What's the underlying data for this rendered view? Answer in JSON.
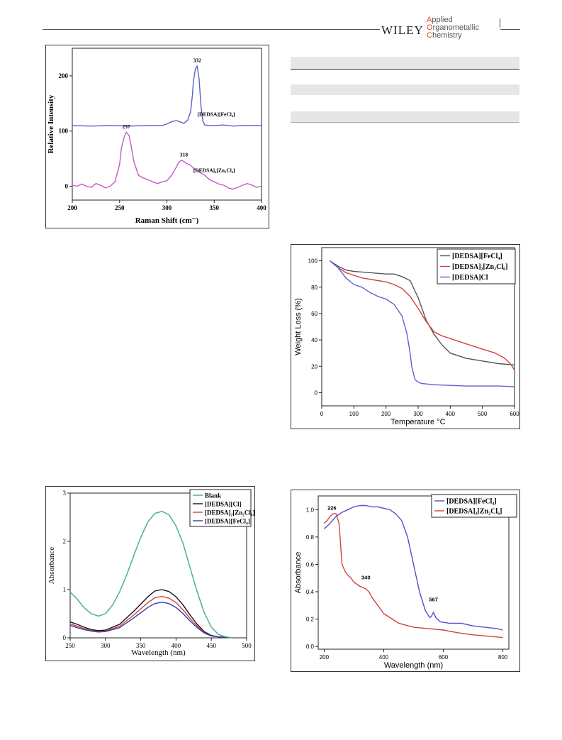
{
  "header": {
    "publisher": "WILEY",
    "journal_lines": [
      "Applied",
      "Organometallic",
      "Chemistry"
    ]
  },
  "chart_data": [
    {
      "id": "raman",
      "type": "line",
      "xlabel": "Raman Shift (cm⁻)",
      "ylabel": "Relative Intensity",
      "xlim": [
        200,
        400
      ],
      "ylim": [
        -25,
        250
      ],
      "x_ticks": [
        "200",
        "250",
        "300",
        "350",
        "400"
      ],
      "y_ticks": [
        "0",
        "100",
        "200"
      ],
      "series": [
        {
          "name": "[DEDSA][FeCl₄]",
          "color": "#5a5fc8",
          "x": [
            200,
            220,
            240,
            260,
            280,
            295,
            300,
            305,
            310,
            315,
            318,
            322,
            325,
            327,
            328,
            330,
            332,
            334,
            336,
            338,
            340,
            345,
            350,
            360,
            370,
            380,
            390,
            400
          ],
          "y": [
            110,
            109,
            110,
            109,
            110,
            110,
            113,
            117,
            119,
            116,
            114,
            120,
            135,
            165,
            190,
            212,
            218,
            195,
            145,
            118,
            111,
            110,
            110,
            111,
            109,
            110,
            110,
            110
          ]
        },
        {
          "name": "[DEDSA]₂[Zn₂Cl₆]",
          "color": "#c558c8",
          "x": [
            200,
            205,
            210,
            215,
            220,
            225,
            230,
            235,
            240,
            245,
            250,
            252,
            255,
            257,
            260,
            262,
            265,
            270,
            275,
            280,
            285,
            290,
            295,
            300,
            305,
            310,
            312,
            315,
            318,
            320,
            325,
            330,
            335,
            340,
            345,
            350,
            355,
            360,
            365,
            370,
            375,
            380,
            385,
            390,
            395,
            400
          ],
          "y": [
            2,
            0,
            4,
            0,
            -2,
            5,
            2,
            -3,
            0,
            8,
            40,
            70,
            90,
            98,
            92,
            75,
            45,
            20,
            15,
            12,
            8,
            5,
            8,
            10,
            20,
            35,
            42,
            47,
            45,
            42,
            38,
            30,
            25,
            20,
            12,
            8,
            4,
            2,
            -3,
            -5,
            -2,
            2,
            5,
            2,
            -2,
            0
          ]
        }
      ],
      "annotations": [
        {
          "text": "332",
          "x": 332,
          "y": 225
        },
        {
          "text": "257",
          "x": 257,
          "y": 105
        },
        {
          "text": "318",
          "x": 318,
          "y": 54
        },
        {
          "text": "[DEDSA][FeCl₄]",
          "x": 372,
          "y": 127
        },
        {
          "text": "[DEDSA]₂[Zn₂Cl₆]",
          "x": 372,
          "y": 26
        }
      ]
    },
    {
      "id": "tga",
      "type": "line",
      "xlabel": "Temperature °C",
      "ylabel": "Weight Loss (%)",
      "xlim": [
        0,
        600
      ],
      "ylim": [
        -10,
        110
      ],
      "x_ticks": [
        "0",
        "100",
        "200",
        "300",
        "400",
        "500",
        "600"
      ],
      "y_ticks": [
        "0",
        "20",
        "40",
        "60",
        "80",
        "100"
      ],
      "legend_position": "top-right",
      "series": [
        {
          "name": "[DEDSA][FeCl₄]",
          "color": "#555555",
          "x": [
            25,
            50,
            75,
            100,
            150,
            200,
            225,
            250,
            275,
            300,
            325,
            350,
            375,
            400,
            450,
            500,
            550,
            600
          ],
          "y": [
            100,
            96,
            93,
            92,
            91,
            90,
            90,
            88,
            85,
            72,
            55,
            44,
            36,
            30,
            26,
            24,
            22,
            21
          ]
        },
        {
          "name": "[DEDSA]₂[Zn₂Cl₆]",
          "color": "#d24040",
          "x": [
            25,
            50,
            75,
            100,
            125,
            150,
            175,
            200,
            225,
            250,
            275,
            300,
            325,
            350,
            375,
            400,
            450,
            500,
            540,
            570,
            590,
            600
          ],
          "y": [
            100,
            95,
            91,
            89,
            87,
            86,
            85,
            84,
            82,
            79,
            73,
            64,
            54,
            46,
            43,
            41,
            37,
            33,
            30,
            26,
            21,
            17
          ]
        },
        {
          "name": "[DEDSA]Cl",
          "color": "#6060d0",
          "x": [
            25,
            50,
            75,
            100,
            125,
            150,
            175,
            200,
            225,
            250,
            265,
            275,
            280,
            290,
            300,
            310,
            350,
            400,
            450,
            500,
            550,
            600
          ],
          "y": [
            100,
            95,
            87,
            82,
            80,
            76,
            73,
            71,
            67,
            58,
            45,
            30,
            20,
            10,
            8,
            7,
            6,
            5.5,
            5,
            5,
            5,
            4.5
          ]
        }
      ]
    },
    {
      "id": "uv_degradation",
      "type": "line",
      "xlabel": "Wavelength (nm)",
      "ylabel": "Absorbance",
      "xlim": [
        250,
        500
      ],
      "ylim": [
        0,
        3
      ],
      "x_ticks": [
        "250",
        "300",
        "350",
        "400",
        "450",
        "500"
      ],
      "y_ticks": [
        "0",
        "1",
        "2",
        "3"
      ],
      "legend_position": "top-right",
      "series": [
        {
          "name": "Blank",
          "color": "#3fa89a",
          "x": [
            250,
            260,
            270,
            280,
            290,
            300,
            310,
            320,
            330,
            340,
            350,
            360,
            370,
            380,
            390,
            400,
            410,
            420,
            430,
            440,
            450,
            460,
            470,
            475,
            480
          ],
          "y": [
            0.95,
            0.8,
            0.62,
            0.5,
            0.45,
            0.5,
            0.68,
            0.95,
            1.3,
            1.7,
            2.08,
            2.4,
            2.58,
            2.62,
            2.55,
            2.32,
            1.95,
            1.45,
            0.95,
            0.52,
            0.22,
            0.07,
            0.02,
            0.01,
            0
          ]
        },
        {
          "name": "[DEDSA][Cl]",
          "color": "#111111",
          "x": [
            250,
            260,
            270,
            280,
            290,
            300,
            320,
            340,
            360,
            370,
            380,
            390,
            400,
            410,
            420,
            430,
            440,
            450,
            460,
            470
          ],
          "y": [
            0.33,
            0.28,
            0.22,
            0.17,
            0.15,
            0.16,
            0.28,
            0.55,
            0.85,
            0.97,
            1.0,
            0.96,
            0.85,
            0.68,
            0.47,
            0.28,
            0.13,
            0.05,
            0.02,
            0.01
          ]
        },
        {
          "name": "[DEDSA]₂[Zn₂Cl₆]",
          "color": "#d24040",
          "x": [
            250,
            260,
            270,
            280,
            290,
            300,
            320,
            340,
            360,
            370,
            380,
            390,
            400,
            410,
            420,
            430,
            440,
            450,
            460,
            470
          ],
          "y": [
            0.29,
            0.24,
            0.19,
            0.15,
            0.13,
            0.14,
            0.24,
            0.47,
            0.73,
            0.83,
            0.86,
            0.82,
            0.73,
            0.58,
            0.4,
            0.24,
            0.11,
            0.04,
            0.02,
            0.01
          ]
        },
        {
          "name": "[DEDSA][FeCl₄]",
          "color": "#3a3aa8",
          "x": [
            250,
            260,
            270,
            280,
            290,
            300,
            320,
            340,
            360,
            370,
            380,
            390,
            400,
            410,
            420,
            430,
            440,
            450,
            460,
            470
          ],
          "y": [
            0.26,
            0.21,
            0.17,
            0.14,
            0.12,
            0.13,
            0.21,
            0.41,
            0.63,
            0.71,
            0.74,
            0.71,
            0.63,
            0.5,
            0.35,
            0.21,
            0.1,
            0.04,
            0.02,
            0.01
          ]
        }
      ]
    },
    {
      "id": "drs",
      "type": "line",
      "xlabel": "Wavelength (nm)",
      "ylabel": "Absorbance",
      "xlim": [
        180,
        820
      ],
      "ylim": [
        -0.02,
        1.1
      ],
      "x_ticks": [
        "200",
        "400",
        "600",
        "800"
      ],
      "y_ticks": [
        "0.0",
        "0.2",
        "0.4",
        "0.6",
        "0.8",
        "1.0"
      ],
      "legend_position": "top-right",
      "series": [
        {
          "name": "[DEDSA][FeCl₄]",
          "color": "#5050d0",
          "x": [
            200,
            220,
            240,
            260,
            280,
            300,
            320,
            340,
            360,
            380,
            400,
            420,
            440,
            460,
            480,
            500,
            520,
            540,
            555,
            560,
            567,
            575,
            590,
            620,
            660,
            700,
            740,
            780,
            800
          ],
          "y": [
            0.86,
            0.9,
            0.95,
            0.98,
            1.0,
            1.02,
            1.03,
            1.03,
            1.02,
            1.02,
            1.01,
            1.0,
            0.97,
            0.92,
            0.8,
            0.6,
            0.4,
            0.26,
            0.21,
            0.22,
            0.25,
            0.21,
            0.18,
            0.17,
            0.17,
            0.15,
            0.14,
            0.13,
            0.12
          ]
        },
        {
          "name": "[DEDSA]₂[Zn₂Cl₆]",
          "color": "#d24040",
          "x": [
            200,
            210,
            220,
            230,
            240,
            250,
            255,
            260,
            270,
            280,
            290,
            300,
            320,
            340,
            350,
            360,
            380,
            400,
            450,
            500,
            550,
            600,
            650,
            700,
            750,
            800
          ],
          "y": [
            0.9,
            0.92,
            0.95,
            0.97,
            0.97,
            0.9,
            0.75,
            0.6,
            0.55,
            0.52,
            0.5,
            0.47,
            0.44,
            0.42,
            0.4,
            0.36,
            0.3,
            0.24,
            0.17,
            0.14,
            0.13,
            0.12,
            0.1,
            0.085,
            0.075,
            0.065
          ]
        }
      ],
      "annotations": [
        {
          "text": "226",
          "x": 226,
          "y": 1.0
        },
        {
          "text": "340",
          "x": 340,
          "y": 0.49
        },
        {
          "text": "567",
          "x": 567,
          "y": 0.33
        }
      ]
    }
  ]
}
